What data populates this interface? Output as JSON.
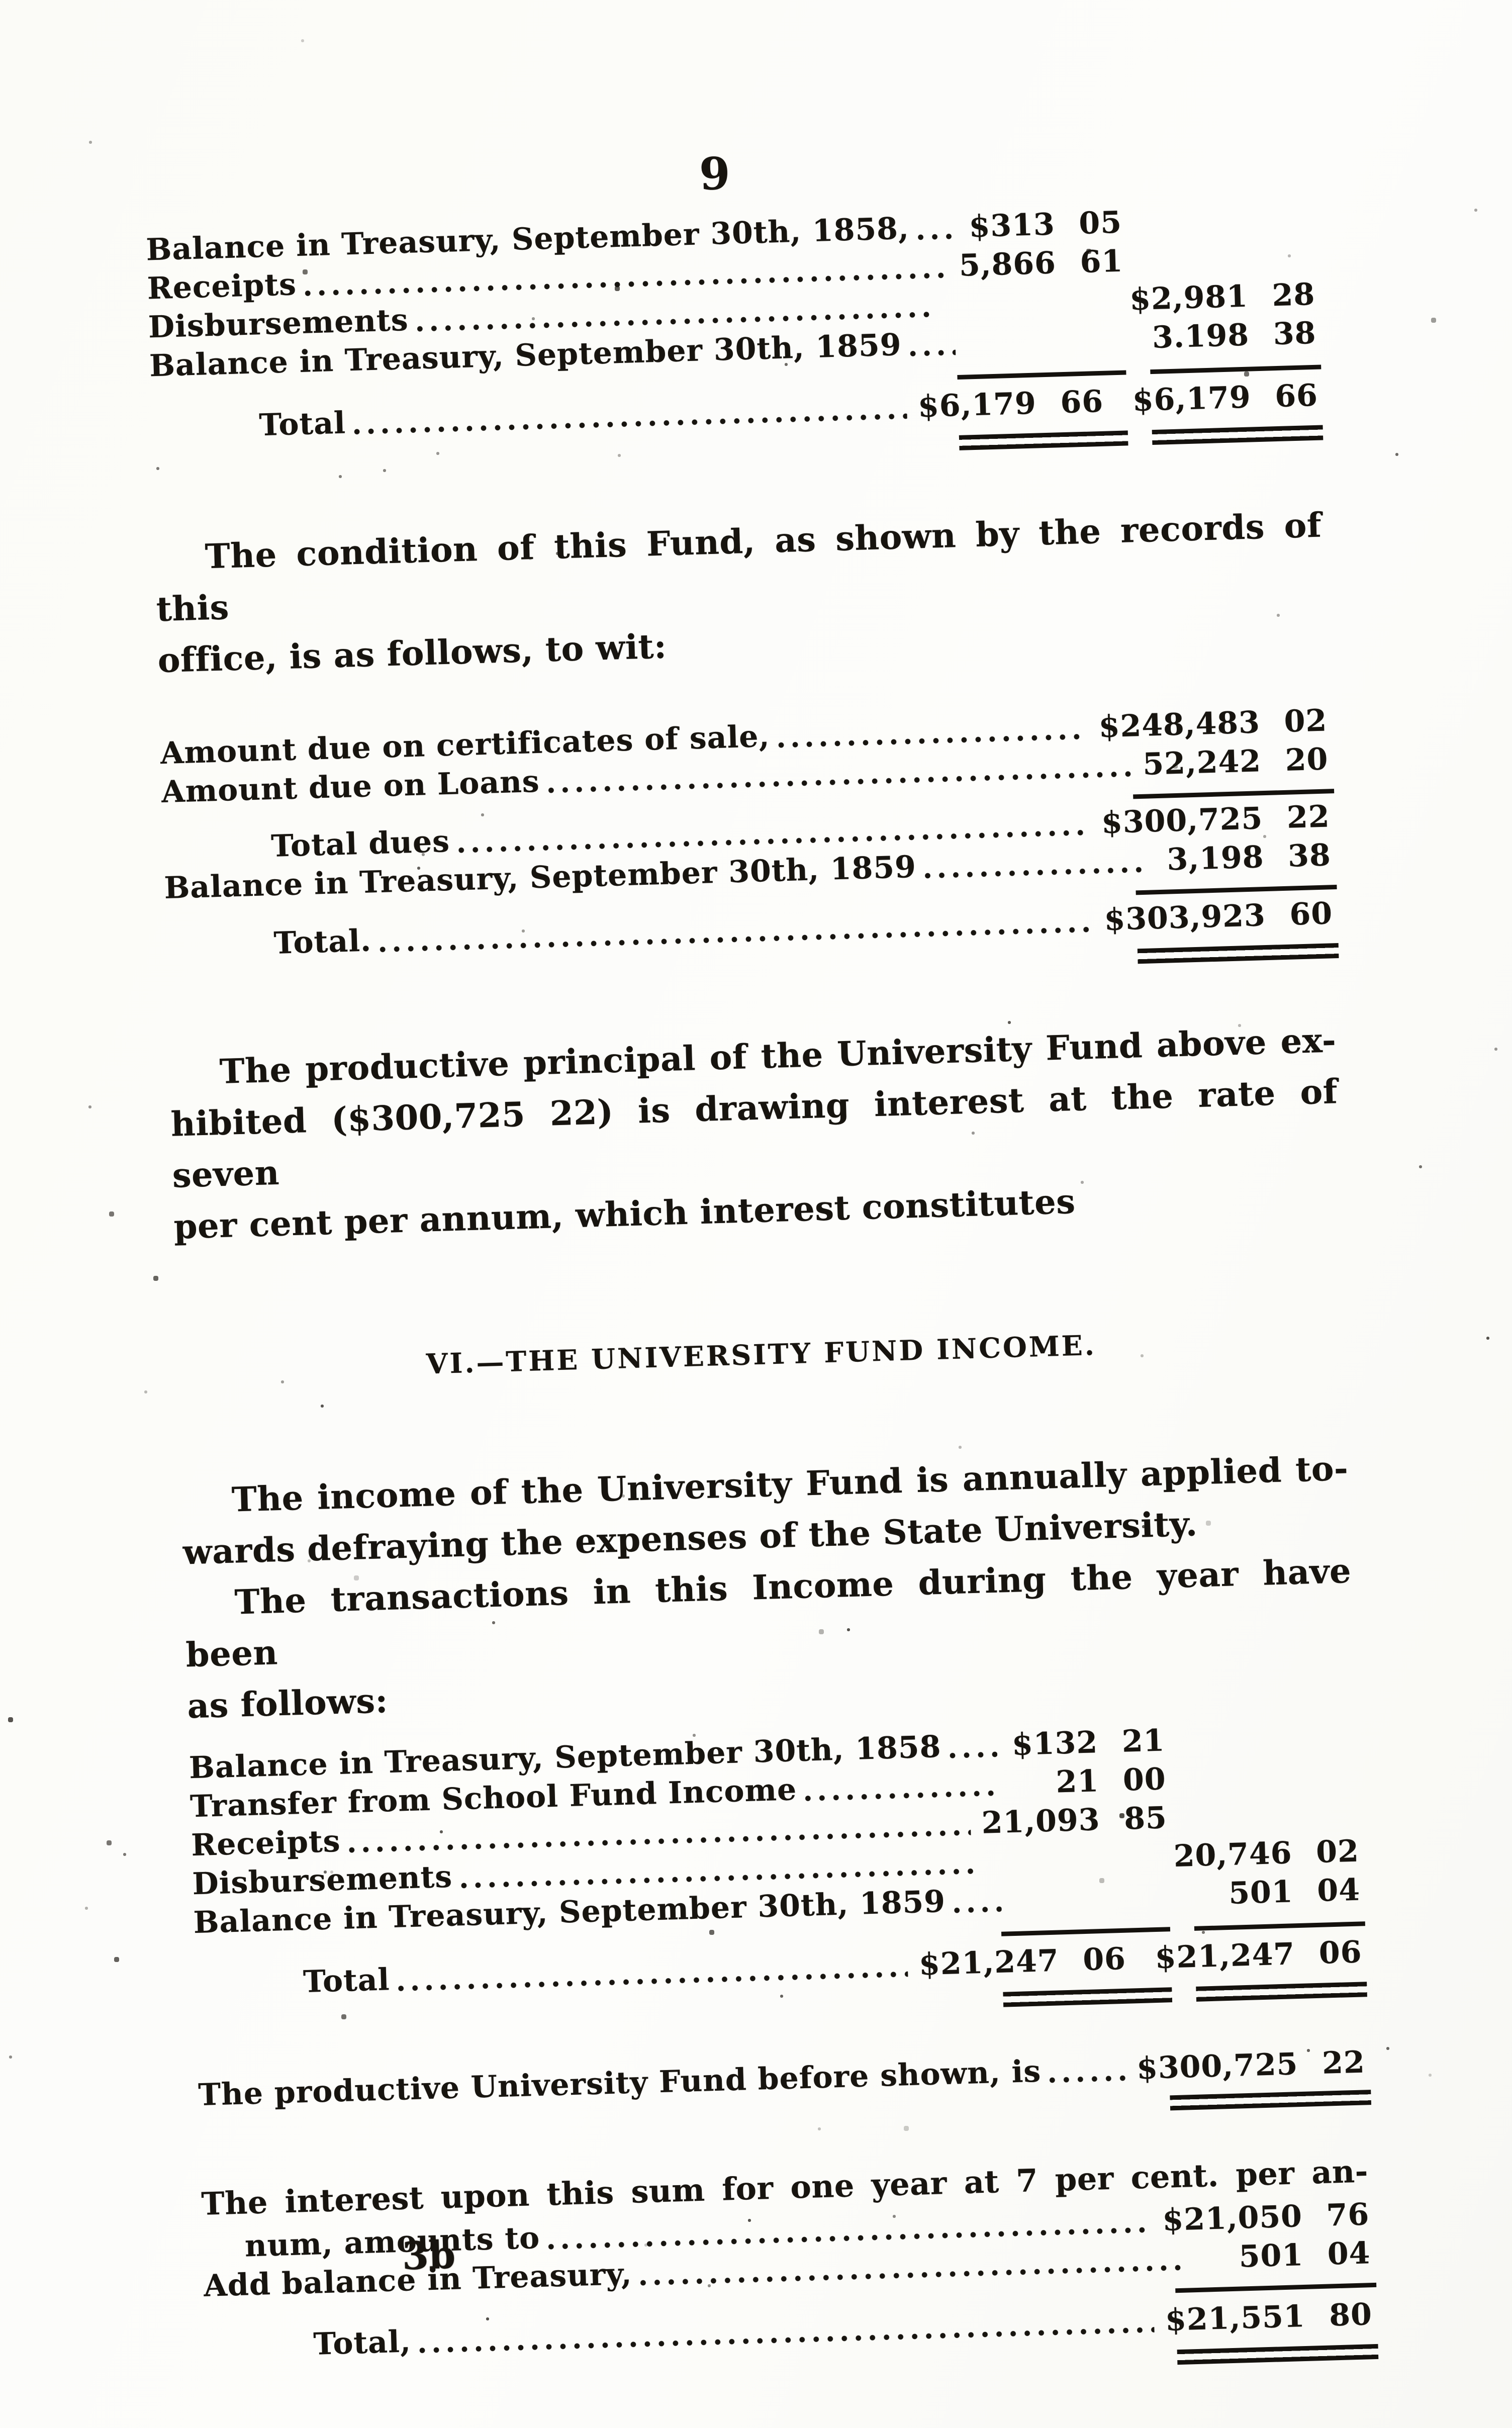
{
  "page": {
    "number": "9",
    "signature_mark": "3b"
  },
  "colors": {
    "ink": "#17140f",
    "paper": "#fbfbf7"
  },
  "fund_statement": {
    "rows": [
      {
        "label": "Balance in Treasury, September 30th, 1858,",
        "col1": "$313 05",
        "col2": ""
      },
      {
        "label": "Receipts",
        "col1": "5,866 61",
        "col2": ""
      },
      {
        "label": "Disbursements",
        "col1": "",
        "col2": "$2,981 28"
      },
      {
        "label": "Balance in Treasury, September 30th, 1859",
        "col1": "",
        "col2": "3.198 38"
      }
    ],
    "total": {
      "label": "Total",
      "col1": "$6,179 66",
      "col2": "$6,179 66"
    }
  },
  "condition_paragraph": {
    "lines": [
      "The condition of this Fund, as shown by the records of this",
      "office, is as follows, to wit:"
    ]
  },
  "condition_statement": {
    "rows": [
      {
        "label": "Amount due on certificates of sale,",
        "amount": "$248,483 02"
      },
      {
        "label": "Amount due on Loans",
        "amount": "52,242 20"
      }
    ],
    "subtotal": {
      "label": "Total dues",
      "amount": "$300,725 22"
    },
    "balance": {
      "label": "Balance in Treasury, September 30th, 1859",
      "amount": "3,198 38"
    },
    "total": {
      "label": "Total.",
      "amount": "$303,923 60"
    }
  },
  "principal_paragraph": {
    "lines": [
      "The productive principal of the University Fund above ex-",
      "hibited ($300,725 22) is drawing interest at the rate of seven",
      "per cent per annum, which interest constitutes"
    ]
  },
  "section_heading": "VI.—THE UNIVERSITY FUND INCOME.",
  "income_paragraph": {
    "lines": [
      "The income of the University Fund is annually applied to-",
      "wards defraying the expenses of the State University."
    ]
  },
  "transactions_paragraph": {
    "lines": [
      "The transactions in this Income during the year have been",
      "as follows:"
    ]
  },
  "income_statement": {
    "rows": [
      {
        "label": "Balance in Treasury, September 30th, 1858",
        "col1": "$132 21",
        "col2": ""
      },
      {
        "label": "Transfer from School Fund Income",
        "col1": "21 00",
        "col2": ""
      },
      {
        "label": "Receipts",
        "col1": "21,093 85",
        "col2": ""
      },
      {
        "label": "Disbursements",
        "col1": "",
        "col2": "20,746 02"
      },
      {
        "label": "Balance in Treasury, September 30th, 1859",
        "col1": "",
        "col2": "501 04"
      }
    ],
    "total": {
      "label": "Total",
      "col1": "$21,247 06",
      "col2": "$21,247 06"
    }
  },
  "productive_fund": {
    "label": "The productive University Fund before shown, is",
    "amount": "$300,725 22"
  },
  "interest_section": {
    "sentence_line1": "The interest upon this sum for one year at 7 per cent. per an-",
    "sentence_line2": "num, amounts to",
    "interest_amount": "$21,050 76",
    "balance_label": "Add balance in Treasury,",
    "balance_amount": "501 04",
    "total_label": "Total,",
    "total_amount": "$21,551 80"
  }
}
